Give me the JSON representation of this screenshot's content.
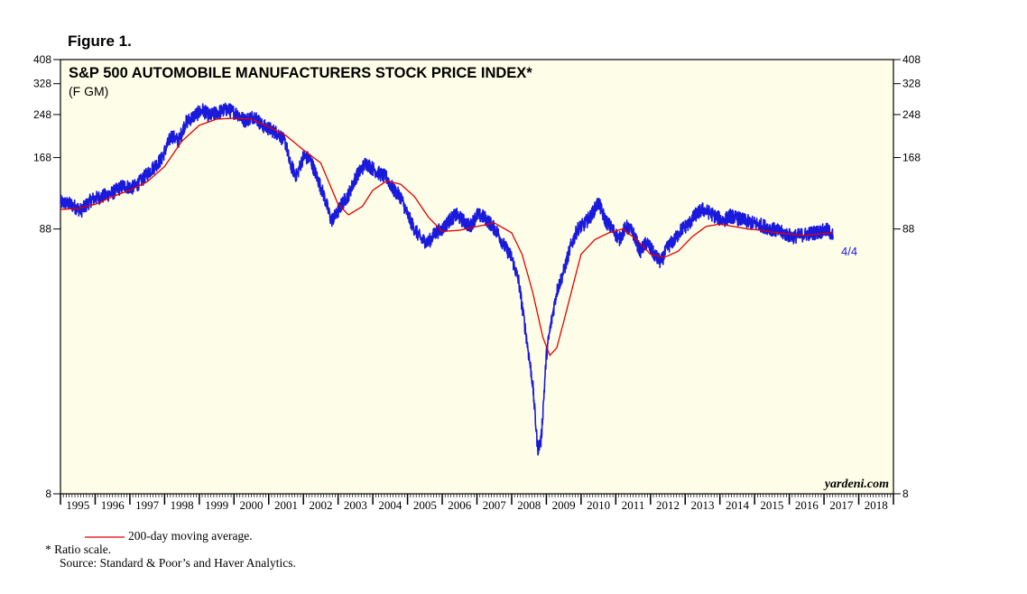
{
  "figure_label": "Figure 1.",
  "footnotes": {
    "legend_label": "200-day moving average.",
    "ratio_note": "*  Ratio scale.",
    "source": "Source: Standard & Poor’s and Haver Analytics."
  },
  "colors": {
    "price": "#1a1adc",
    "ma": "#e00000",
    "plot_bg": "#fefee8"
  },
  "chart_data": {
    "type": "line",
    "title": "S&P 500 AUTOMOBILE MANUFACTURERS STOCK PRICE INDEX*",
    "subtitle": "(F GM)",
    "watermark": "yardeni.com",
    "scale": "log",
    "ylim": [
      8,
      408
    ],
    "yticks": [
      8,
      88,
      168,
      248,
      328,
      408
    ],
    "xlim": [
      1995,
      2019
    ],
    "xticks": [
      "1995",
      "1996",
      "1997",
      "1998",
      "1999",
      "2000",
      "2001",
      "2002",
      "2003",
      "2004",
      "2005",
      "2006",
      "2007",
      "2008",
      "2009",
      "2010",
      "2011",
      "2012",
      "2013",
      "2014",
      "2015",
      "2016",
      "2017",
      "2018"
    ],
    "end_label": "4/4",
    "grid": false,
    "series": [
      {
        "key": "price",
        "x": [
          1995.0,
          1995.3,
          1995.6,
          1995.9,
          1996.2,
          1996.5,
          1996.8,
          1997.1,
          1997.3,
          1997.6,
          1997.9,
          1998.2,
          1998.4,
          1998.6,
          1998.9,
          1999.1,
          1999.3,
          1999.5,
          1999.8,
          2000.1,
          2000.3,
          2000.6,
          2000.8,
          2001.1,
          2001.3,
          2001.5,
          2001.6,
          2001.8,
          2002.0,
          2002.2,
          2002.4,
          2002.6,
          2002.8,
          2002.95,
          2003.1,
          2003.3,
          2003.5,
          2003.8,
          2004.0,
          2004.2,
          2004.4,
          2004.6,
          2004.8,
          2005.0,
          2005.2,
          2005.4,
          2005.6,
          2005.8,
          2006.0,
          2006.2,
          2006.4,
          2006.6,
          2006.8,
          2007.0,
          2007.2,
          2007.4,
          2007.6,
          2007.8,
          2008.0,
          2008.2,
          2008.4,
          2008.6,
          2008.75,
          2008.85,
          2009.0,
          2009.1,
          2009.2,
          2009.3,
          2009.5,
          2009.7,
          2009.9,
          2010.1,
          2010.3,
          2010.5,
          2010.7,
          2010.9,
          2011.1,
          2011.3,
          2011.5,
          2011.7,
          2011.9,
          2012.1,
          2012.3,
          2012.5,
          2012.7,
          2012.9,
          2013.1,
          2013.3,
          2013.5,
          2013.7,
          2013.9,
          2014.1,
          2014.3,
          2014.5,
          2014.7,
          2014.9,
          2015.1,
          2015.3,
          2015.5,
          2015.7,
          2015.9,
          2016.1,
          2016.3,
          2016.5,
          2016.7,
          2016.9,
          2017.1,
          2017.26
        ],
        "y": [
          112,
          110,
          104,
          115,
          118,
          122,
          130,
          128,
          135,
          150,
          165,
          205,
          195,
          230,
          248,
          258,
          245,
          252,
          260,
          250,
          235,
          245,
          225,
          215,
          208,
          190,
          160,
          142,
          170,
          165,
          140,
          118,
          95,
          100,
          110,
          120,
          140,
          160,
          152,
          145,
          140,
          125,
          118,
          100,
          88,
          80,
          78,
          85,
          88,
          95,
          100,
          95,
          90,
          100,
          98,
          92,
          85,
          75,
          68,
          55,
          35,
          22,
          12,
          13,
          28,
          35,
          42,
          50,
          60,
          75,
          88,
          92,
          100,
          112,
          95,
          88,
          80,
          90,
          85,
          72,
          78,
          70,
          65,
          75,
          80,
          88,
          92,
          100,
          105,
          102,
          98,
          95,
          99,
          97,
          95,
          93,
          92,
          90,
          88,
          86,
          84,
          82,
          83,
          84,
          85,
          86,
          87,
          83
        ]
      },
      {
        "key": "ma",
        "x": [
          1995.0,
          1995.5,
          1996.0,
          1996.5,
          1997.0,
          1997.5,
          1998.0,
          1998.5,
          1999.0,
          1999.5,
          2000.0,
          2000.5,
          2001.0,
          2001.5,
          2002.0,
          2002.5,
          2003.0,
          2003.3,
          2003.7,
          2004.0,
          2004.4,
          2004.8,
          2005.2,
          2005.6,
          2006.0,
          2006.5,
          2007.0,
          2007.5,
          2008.0,
          2008.3,
          2008.6,
          2008.9,
          2009.1,
          2009.3,
          2009.5,
          2009.8,
          2010.0,
          2010.4,
          2010.8,
          2011.2,
          2011.6,
          2012.0,
          2012.4,
          2012.8,
          2013.2,
          2013.6,
          2014.0,
          2014.4,
          2014.8,
          2015.2,
          2015.6,
          2016.0,
          2016.4,
          2016.8,
          2017.26
        ],
        "y": [
          105,
          106,
          110,
          118,
          125,
          135,
          155,
          195,
          225,
          238,
          240,
          238,
          222,
          205,
          180,
          160,
          110,
          100,
          108,
          125,
          136,
          132,
          118,
          98,
          86,
          87,
          90,
          93,
          85,
          70,
          50,
          33,
          28,
          30,
          38,
          55,
          70,
          80,
          85,
          88,
          80,
          70,
          68,
          72,
          82,
          90,
          92,
          90,
          88,
          87,
          85,
          84,
          83,
          84,
          85
        ]
      }
    ]
  }
}
